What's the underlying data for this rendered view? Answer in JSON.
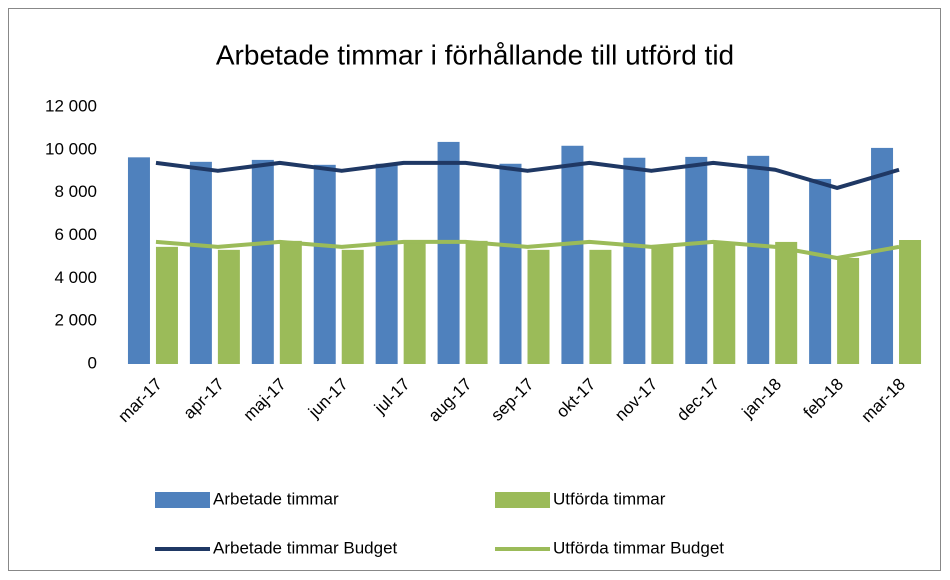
{
  "chart_data": {
    "type": "bar_line",
    "title": "Arbetade timmar i förhållande till utförd tid",
    "categories": [
      "mar-17",
      "apr-17",
      "maj-17",
      "jun-17",
      "jul-17",
      "aug-17",
      "sep-17",
      "okt-17",
      "nov-17",
      "dec-17",
      "jan-18",
      "feb-18",
      "mar-18"
    ],
    "series": [
      {
        "name": "Arbetade timmar",
        "type": "bar",
        "color": "#4f81bd",
        "values": [
          9650,
          9440,
          9530,
          9300,
          9350,
          10370,
          9350,
          10190,
          9630,
          9670,
          9720,
          8640,
          10090
        ]
      },
      {
        "name": "Utförda timmar",
        "type": "bar",
        "color": "#9bbb59",
        "values": [
          5470,
          5330,
          5750,
          5330,
          5750,
          5750,
          5330,
          5330,
          5560,
          5700,
          5700,
          4950,
          5790
        ]
      },
      {
        "name": "Arbetade timmar Budget",
        "type": "line",
        "color": "#1f3864",
        "values": [
          9390,
          9020,
          9390,
          9020,
          9390,
          9390,
          9020,
          9390,
          9020,
          9390,
          9070,
          8220,
          9070
        ]
      },
      {
        "name": "Utförda timmar Budget",
        "type": "line",
        "color": "#9bbb59",
        "values": [
          5700,
          5470,
          5700,
          5470,
          5700,
          5700,
          5470,
          5700,
          5470,
          5700,
          5470,
          4950,
          5470
        ]
      }
    ],
    "ylim": [
      0,
      12000
    ],
    "yticks": [
      0,
      {
        "value": 2000,
        "label": "2 000"
      },
      {
        "value": 4000,
        "label": "4 000"
      },
      {
        "value": 6000,
        "label": "6 000"
      },
      {
        "value": 8000,
        "label": "8 000"
      },
      {
        "value": 10000,
        "label": "10 000"
      },
      {
        "value": 12000,
        "label": "12 000"
      }
    ],
    "grid": false,
    "legend": "bottom"
  }
}
